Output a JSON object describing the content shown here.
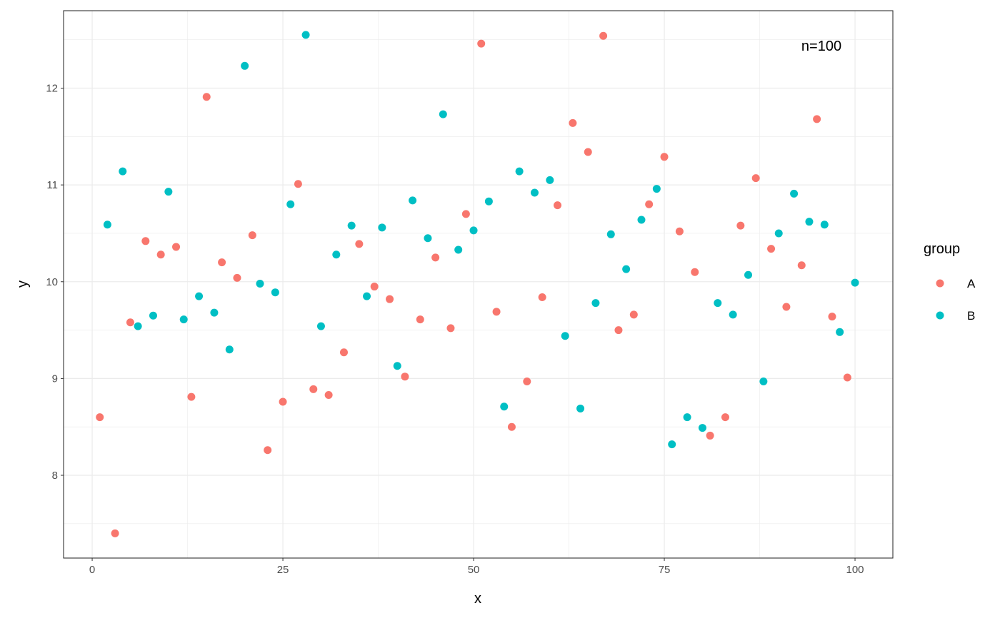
{
  "chart_data": {
    "type": "scatter",
    "xlabel": "x",
    "ylabel": "y",
    "xlim": [
      -3.75,
      104.96
    ],
    "ylim": [
      7.145,
      12.8
    ],
    "xticks": [
      "0",
      "25",
      "50",
      "75",
      "100"
    ],
    "yticks": [
      "8",
      "9",
      "10",
      "11",
      "12"
    ],
    "grid": true,
    "annotation": "n=100",
    "legend": {
      "title": "group",
      "placement": "right",
      "entries": [
        "A",
        "B"
      ]
    },
    "colors": {
      "A": "#F8766D",
      "B": "#00BFC4"
    },
    "series": [
      {
        "name": "A",
        "x": [
          1,
          3,
          5,
          7,
          9,
          11,
          13,
          15,
          17,
          19,
          21,
          23,
          25,
          27,
          29,
          31,
          33,
          35,
          37,
          39,
          41,
          43,
          45,
          47,
          49,
          51,
          53,
          55,
          57,
          59,
          61,
          63,
          65,
          67,
          69,
          71,
          73,
          75,
          77,
          79,
          81,
          83,
          85,
          87,
          89,
          91,
          93,
          95,
          97,
          99
        ],
        "y": [
          8.6,
          7.4,
          9.58,
          10.42,
          10.28,
          10.36,
          8.81,
          11.91,
          10.2,
          10.04,
          10.48,
          8.26,
          8.76,
          11.01,
          8.89,
          8.83,
          9.27,
          10.39,
          9.95,
          9.82,
          9.02,
          9.61,
          10.25,
          9.52,
          10.7,
          12.46,
          9.69,
          8.5,
          8.97,
          9.84,
          10.79,
          11.64,
          11.34,
          12.54,
          9.5,
          9.66,
          10.8,
          11.29,
          10.52,
          10.1,
          8.41,
          8.6,
          10.58,
          11.07,
          10.34,
          9.74,
          10.17,
          11.68,
          9.64,
          9.01
        ]
      },
      {
        "name": "B",
        "x": [
          2,
          4,
          6,
          8,
          10,
          12,
          14,
          16,
          18,
          20,
          22,
          24,
          26,
          28,
          30,
          32,
          34,
          36,
          38,
          40,
          42,
          44,
          46,
          48,
          50,
          52,
          54,
          56,
          58,
          60,
          62,
          64,
          66,
          68,
          70,
          72,
          74,
          76,
          78,
          80,
          82,
          84,
          86,
          88,
          90,
          92,
          94,
          96,
          98,
          100
        ],
        "y": [
          10.59,
          11.14,
          9.54,
          9.65,
          10.93,
          9.61,
          9.85,
          9.68,
          9.3,
          12.23,
          9.98,
          9.89,
          10.8,
          12.55,
          9.54,
          10.28,
          10.58,
          9.85,
          10.56,
          9.13,
          10.84,
          10.45,
          11.73,
          10.33,
          10.53,
          10.83,
          8.71,
          11.14,
          10.92,
          11.05,
          9.44,
          8.69,
          9.78,
          10.49,
          10.13,
          10.64,
          10.96,
          8.32,
          8.6,
          8.49,
          9.78,
          9.66,
          10.07,
          8.97,
          10.5,
          10.91,
          10.62,
          10.59,
          9.48,
          9.99
        ]
      }
    ]
  }
}
